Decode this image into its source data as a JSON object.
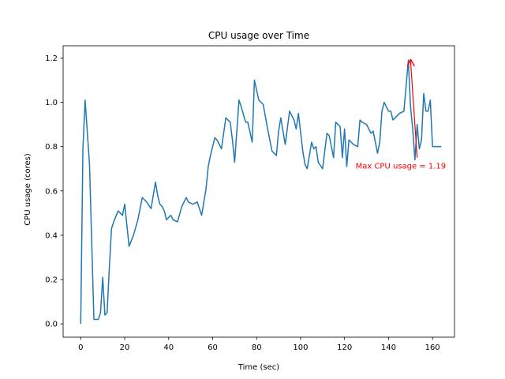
{
  "chart_data": {
    "type": "line",
    "title": "CPU usage over Time",
    "xlabel": "Time (sec)",
    "ylabel": "CPU usage (cores)",
    "xlim": [
      -8,
      170
    ],
    "ylim": [
      -0.06,
      1.255
    ],
    "xticks": [
      0,
      20,
      40,
      60,
      80,
      100,
      120,
      140,
      160
    ],
    "yticks": [
      0.0,
      0.2,
      0.4,
      0.6,
      0.8,
      1.0,
      1.2
    ],
    "ytick_labels": [
      "0.0",
      "0.2",
      "0.4",
      "0.6",
      "0.8",
      "1.0",
      "1.2"
    ],
    "grid": false,
    "colors": {
      "line": "#1f77b4",
      "annotation": "#ff0000"
    },
    "series": [
      {
        "x": [
          0,
          1,
          2,
          4,
          6,
          8,
          9,
          10,
          11,
          12,
          13,
          14,
          15,
          17,
          19,
          20,
          22,
          24,
          26,
          28,
          30,
          32,
          34,
          35,
          36,
          37,
          38,
          39,
          41,
          42,
          44,
          46,
          48,
          49,
          51,
          53,
          55,
          57,
          58,
          59,
          61,
          62,
          64,
          66,
          68,
          69,
          70,
          72,
          73,
          75,
          76,
          78,
          79,
          81,
          83,
          85,
          87,
          89,
          90,
          91,
          93,
          95,
          97,
          98,
          99,
          101,
          102,
          103,
          105,
          106,
          107,
          108,
          110,
          112,
          113,
          115,
          116,
          118,
          119,
          120,
          121,
          122,
          124,
          126,
          127,
          128,
          130,
          132,
          133,
          135,
          136,
          137,
          138,
          140,
          141,
          142,
          143,
          145,
          147,
          149,
          150,
          151,
          152,
          153,
          154,
          155,
          156,
          157,
          158,
          159,
          160,
          161,
          162,
          163,
          164
        ],
        "y": [
          0.0,
          0.79,
          1.01,
          0.72,
          0.02,
          0.02,
          0.05,
          0.21,
          0.04,
          0.05,
          0.25,
          0.43,
          0.46,
          0.51,
          0.49,
          0.54,
          0.35,
          0.4,
          0.47,
          0.57,
          0.55,
          0.52,
          0.64,
          0.58,
          0.54,
          0.53,
          0.51,
          0.47,
          0.49,
          0.47,
          0.46,
          0.53,
          0.57,
          0.55,
          0.54,
          0.55,
          0.49,
          0.61,
          0.71,
          0.76,
          0.84,
          0.83,
          0.79,
          0.93,
          0.91,
          0.83,
          0.73,
          1.01,
          0.98,
          0.91,
          0.91,
          0.82,
          1.1,
          1.01,
          0.99,
          0.88,
          0.78,
          0.76,
          0.87,
          0.93,
          0.81,
          0.96,
          0.92,
          0.88,
          0.95,
          0.78,
          0.72,
          0.7,
          0.82,
          0.79,
          0.8,
          0.73,
          0.7,
          0.86,
          0.85,
          0.75,
          0.91,
          0.89,
          0.75,
          0.88,
          0.71,
          0.83,
          0.81,
          0.8,
          0.92,
          0.91,
          0.9,
          0.86,
          0.87,
          0.77,
          0.82,
          0.96,
          1.0,
          0.96,
          0.96,
          0.92,
          0.93,
          0.95,
          0.96,
          1.19,
          0.98,
          0.88,
          0.74,
          0.9,
          0.79,
          0.83,
          1.04,
          0.96,
          0.96,
          1.01,
          0.8,
          0.8,
          0.8,
          0.8,
          0.8
        ]
      }
    ],
    "annotations": [
      {
        "text": "Max CPU usage = 1.19",
        "text_xy": [
          125,
          0.7
        ],
        "arrow_from": [
          153,
          0.75
        ],
        "arrow_to": [
          150,
          1.19
        ]
      }
    ]
  }
}
